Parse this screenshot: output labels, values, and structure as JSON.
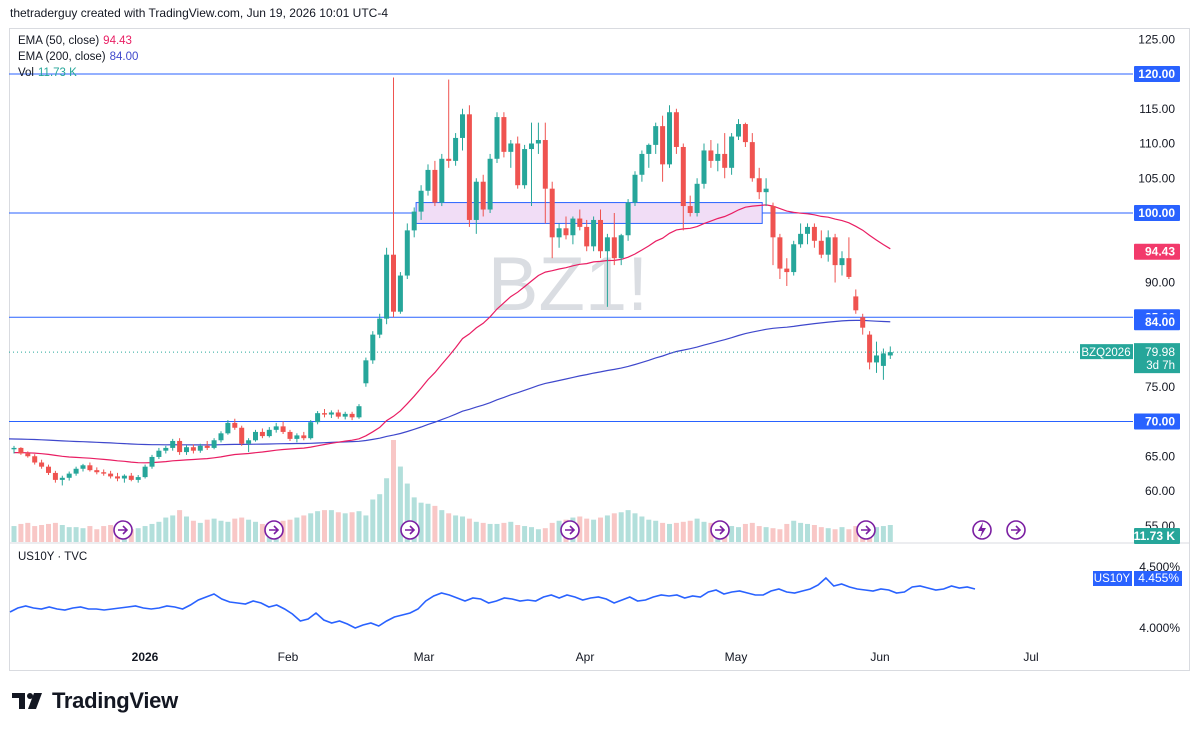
{
  "header": {
    "text": "thetraderguy created with TradingView.com, Jun 19, 2026 10:01 UTC-4"
  },
  "watermark": "BZ1!",
  "legend": {
    "ema50": {
      "label": "EMA (50, close)",
      "value": "94.43",
      "color": "#e91e63"
    },
    "ema200": {
      "label": "EMA (200, close)",
      "value": "84.00",
      "color": "#3f48cc"
    },
    "vol": {
      "label": "Vol",
      "value": "11.73 K",
      "color": "#26a69a"
    }
  },
  "colors": {
    "up": "#26a69a",
    "down": "#ef5350",
    "level_line": "#2962ff",
    "zone": "#e9d5f5"
  },
  "y_axis": {
    "ticks": [
      "125.00",
      "115.00",
      "110.00",
      "105.00",
      "90.00",
      "75.00",
      "65.00",
      "60.00",
      "55.00"
    ]
  },
  "badges": [
    {
      "text": "120.00",
      "kind": "level"
    },
    {
      "text": "100.00",
      "kind": "level"
    },
    {
      "text": "94.43",
      "kind": "ema50"
    },
    {
      "text": "85.00",
      "kind": "level"
    },
    {
      "text": "84.00",
      "kind": "level"
    },
    {
      "text": "70.00",
      "kind": "level"
    },
    {
      "text": "11.73 K",
      "kind": "vol"
    }
  ],
  "price_tag": {
    "symbol": "BZQ2026",
    "price": "79.98",
    "countdown": "3d 7h"
  },
  "x_axis": {
    "labels": [
      "2026",
      "Feb",
      "Mar",
      "Apr",
      "May",
      "Jun",
      "Jul"
    ]
  },
  "sub_pane": {
    "label": "US10Y · TVC",
    "ticks": [
      "4.500%",
      "4.000%"
    ],
    "badge_symbol": "US10Y",
    "badge_value": "4.455%"
  },
  "brand": {
    "name": "TradingView"
  },
  "chart_data": {
    "type": "candlestick",
    "symbol": "BZ1!",
    "ylim": [
      52,
      127
    ],
    "horizontal_levels": [
      120,
      100,
      85,
      70
    ],
    "zone": [
      98.5,
      101.5
    ],
    "ohlc": [
      [
        66.0,
        66.5,
        65.4,
        66.2
      ],
      [
        66.2,
        66.3,
        65.2,
        65.4
      ],
      [
        65.4,
        65.7,
        64.8,
        65.0
      ],
      [
        65.0,
        65.3,
        63.8,
        64.1
      ],
      [
        64.1,
        64.5,
        63.2,
        63.5
      ],
      [
        63.5,
        63.8,
        62.3,
        62.6
      ],
      [
        62.6,
        62.9,
        61.2,
        61.6
      ],
      [
        61.6,
        62.2,
        60.8,
        61.9
      ],
      [
        61.9,
        62.8,
        61.5,
        62.5
      ],
      [
        62.5,
        63.5,
        62.2,
        63.2
      ],
      [
        63.2,
        63.9,
        62.8,
        63.7
      ],
      [
        63.7,
        64.1,
        62.8,
        63.0
      ],
      [
        63.0,
        63.4,
        62.4,
        62.7
      ],
      [
        62.7,
        63.1,
        62.2,
        62.5
      ],
      [
        62.5,
        62.9,
        61.8,
        62.1
      ],
      [
        62.1,
        62.6,
        61.4,
        61.8
      ],
      [
        61.8,
        62.4,
        61.2,
        62.2
      ],
      [
        62.2,
        62.6,
        61.4,
        61.6
      ],
      [
        61.6,
        62.3,
        61.2,
        62.0
      ],
      [
        62.0,
        63.8,
        61.8,
        63.5
      ],
      [
        63.5,
        65.2,
        63.2,
        64.9
      ],
      [
        64.9,
        66.2,
        64.6,
        65.8
      ],
      [
        65.8,
        66.5,
        65.4,
        66.2
      ],
      [
        66.2,
        67.5,
        65.8,
        67.2
      ],
      [
        67.2,
        67.6,
        65.2,
        65.6
      ],
      [
        65.6,
        66.6,
        65.2,
        66.3
      ],
      [
        66.3,
        66.7,
        65.4,
        65.8
      ],
      [
        65.8,
        66.8,
        65.5,
        66.5
      ],
      [
        66.5,
        67.2,
        65.9,
        66.2
      ],
      [
        66.2,
        67.6,
        66.0,
        67.3
      ],
      [
        67.3,
        68.6,
        67.0,
        68.3
      ],
      [
        68.3,
        70.2,
        68.1,
        69.8
      ],
      [
        69.8,
        70.4,
        68.8,
        69.1
      ],
      [
        69.1,
        69.4,
        66.5,
        66.8
      ],
      [
        66.8,
        67.6,
        65.6,
        67.3
      ],
      [
        67.3,
        68.8,
        67.1,
        68.5
      ],
      [
        68.5,
        69.0,
        67.6,
        67.9
      ],
      [
        67.9,
        69.2,
        67.7,
        68.8
      ],
      [
        68.8,
        69.8,
        68.4,
        69.3
      ],
      [
        69.3,
        70.0,
        68.2,
        68.5
      ],
      [
        68.5,
        68.8,
        67.2,
        67.5
      ],
      [
        67.5,
        68.3,
        67.0,
        68.0
      ],
      [
        68.0,
        68.5,
        67.3,
        67.6
      ],
      [
        67.6,
        70.2,
        67.4,
        69.9
      ],
      [
        69.9,
        71.5,
        69.6,
        71.2
      ],
      [
        71.2,
        71.8,
        70.6,
        71.0
      ],
      [
        71.0,
        71.6,
        70.5,
        71.3
      ],
      [
        71.3,
        71.7,
        70.4,
        70.7
      ],
      [
        70.7,
        71.4,
        70.3,
        71.1
      ],
      [
        71.1,
        71.4,
        70.2,
        70.6
      ],
      [
        70.6,
        72.5,
        70.4,
        72.2
      ],
      [
        75.5,
        79.2,
        75.0,
        78.8
      ],
      [
        78.8,
        83.0,
        78.3,
        82.5
      ],
      [
        82.5,
        85.5,
        82.0,
        84.8
      ],
      [
        84.8,
        95.0,
        84.0,
        94.0
      ],
      [
        94.0,
        119.5,
        85.0,
        85.8
      ],
      [
        85.8,
        91.5,
        85.5,
        91.0
      ],
      [
        91.0,
        98.5,
        90.5,
        97.5
      ],
      [
        97.5,
        100.8,
        96.5,
        100.2
      ],
      [
        100.2,
        104.0,
        99.0,
        103.2
      ],
      [
        103.2,
        107.0,
        102.5,
        106.2
      ],
      [
        106.2,
        107.5,
        101.0,
        101.5
      ],
      [
        101.5,
        108.5,
        101.0,
        107.8
      ],
      [
        107.8,
        119.2,
        106.5,
        107.5
      ],
      [
        107.5,
        111.5,
        106.8,
        110.8
      ],
      [
        110.8,
        115.0,
        109.0,
        114.2
      ],
      [
        114.2,
        115.5,
        98.0,
        99.0
      ],
      [
        99.0,
        105.0,
        97.0,
        104.5
      ],
      [
        104.5,
        105.5,
        99.5,
        100.5
      ],
      [
        100.5,
        108.5,
        100.0,
        107.8
      ],
      [
        107.8,
        114.5,
        107.2,
        113.8
      ],
      [
        113.8,
        114.5,
        108.0,
        108.8
      ],
      [
        108.8,
        110.5,
        106.5,
        110.0
      ],
      [
        110.0,
        111.0,
        103.5,
        104.0
      ],
      [
        104.0,
        109.8,
        103.5,
        109.2
      ],
      [
        109.2,
        113.0,
        101.0,
        110.0
      ],
      [
        110.0,
        113.0,
        108.5,
        110.5
      ],
      [
        110.5,
        113.0,
        98.5,
        103.5
      ],
      [
        103.5,
        104.5,
        93.5,
        96.5
      ],
      [
        96.5,
        98.5,
        95.0,
        97.8
      ],
      [
        97.8,
        99.5,
        96.2,
        96.8
      ],
      [
        96.8,
        99.5,
        95.5,
        99.2
      ],
      [
        99.2,
        100.5,
        97.5,
        98.0
      ],
      [
        98.0,
        99.0,
        94.5,
        95.2
      ],
      [
        95.2,
        99.5,
        94.5,
        99.0
      ],
      [
        99.0,
        100.5,
        93.5,
        94.5
      ],
      [
        94.5,
        97.0,
        86.5,
        96.5
      ],
      [
        96.5,
        100.0,
        92.5,
        93.5
      ],
      [
        93.5,
        97.0,
        92.5,
        96.8
      ],
      [
        96.8,
        102.0,
        96.0,
        101.5
      ],
      [
        101.5,
        106.0,
        101.0,
        105.5
      ],
      [
        105.5,
        109.0,
        104.5,
        108.5
      ],
      [
        108.5,
        110.0,
        106.5,
        109.8
      ],
      [
        109.8,
        113.0,
        108.5,
        112.5
      ],
      [
        112.5,
        114.0,
        104.5,
        107.0
      ],
      [
        107.0,
        115.5,
        106.5,
        114.5
      ],
      [
        114.5,
        115.0,
        108.5,
        109.5
      ],
      [
        109.5,
        110.0,
        97.5,
        101.0
      ],
      [
        101.0,
        102.5,
        99.5,
        100.0
      ],
      [
        100.0,
        105.0,
        99.5,
        104.2
      ],
      [
        104.2,
        110.0,
        103.5,
        109.0
      ],
      [
        109.0,
        110.5,
        106.5,
        107.5
      ],
      [
        107.5,
        110.0,
        106.0,
        108.5
      ],
      [
        108.5,
        111.5,
        105.0,
        106.5
      ],
      [
        106.5,
        111.5,
        105.5,
        111.0
      ],
      [
        111.0,
        113.5,
        110.5,
        112.8
      ],
      [
        112.8,
        113.0,
        109.5,
        110.2
      ],
      [
        110.2,
        111.5,
        104.5,
        105.0
      ],
      [
        105.0,
        106.5,
        102.0,
        103.0
      ],
      [
        103.0,
        105.0,
        101.0,
        103.5
      ],
      [
        101.0,
        101.5,
        92.5,
        96.5
      ],
      [
        96.5,
        97.0,
        90.5,
        92.0
      ],
      [
        92.0,
        93.5,
        89.5,
        91.5
      ],
      [
        91.5,
        96.0,
        91.0,
        95.5
      ],
      [
        95.5,
        98.5,
        95.0,
        97.0
      ],
      [
        97.0,
        98.5,
        95.5,
        98.0
      ],
      [
        98.0,
        98.5,
        95.0,
        96.0
      ],
      [
        96.0,
        97.5,
        93.5,
        94.0
      ],
      [
        94.0,
        97.5,
        93.0,
        96.5
      ],
      [
        96.5,
        97.0,
        90.0,
        92.5
      ],
      [
        92.5,
        94.5,
        91.0,
        93.5
      ],
      [
        93.5,
        96.5,
        90.5,
        90.8
      ],
      [
        88.0,
        89.0,
        85.5,
        86.0
      ],
      [
        85.0,
        85.5,
        82.5,
        83.5
      ],
      [
        82.5,
        83.0,
        77.5,
        78.5
      ],
      [
        78.5,
        81.5,
        77.0,
        79.5
      ],
      [
        78.0,
        80.5,
        76.0,
        79.8
      ],
      [
        79.5,
        80.8,
        79.0,
        79.98
      ]
    ],
    "volume": [
      15,
      17,
      18,
      15,
      16,
      17,
      18,
      16,
      14,
      14,
      13,
      15,
      12,
      15,
      16,
      14,
      13,
      12,
      13,
      15,
      17,
      19,
      23,
      25,
      30,
      24,
      20,
      18,
      21,
      22,
      20,
      19,
      22,
      23,
      21,
      19,
      17,
      15,
      16,
      20,
      21,
      23,
      25,
      27,
      29,
      30,
      30,
      28,
      27,
      28,
      29,
      25,
      40,
      45,
      60,
      96,
      71,
      55,
      42,
      37,
      36,
      34,
      30,
      27,
      25,
      24,
      22,
      19,
      18,
      17,
      17,
      18,
      19,
      16,
      15,
      14,
      12,
      13,
      18,
      20,
      21,
      23,
      24,
      22,
      21,
      23,
      25,
      27,
      28,
      30,
      27,
      24,
      21,
      20,
      18,
      17,
      18,
      19,
      20,
      22,
      19,
      18,
      17,
      16,
      15,
      14,
      17,
      18,
      15,
      14,
      13,
      12,
      17,
      20,
      18,
      17,
      16,
      14,
      13,
      12,
      14,
      12,
      15,
      16,
      17,
      14,
      15,
      16
    ],
    "ema50": {
      "start": 65.5,
      "end": 94.43
    },
    "ema200": {
      "start": 67.5,
      "end": 84.0
    }
  }
}
